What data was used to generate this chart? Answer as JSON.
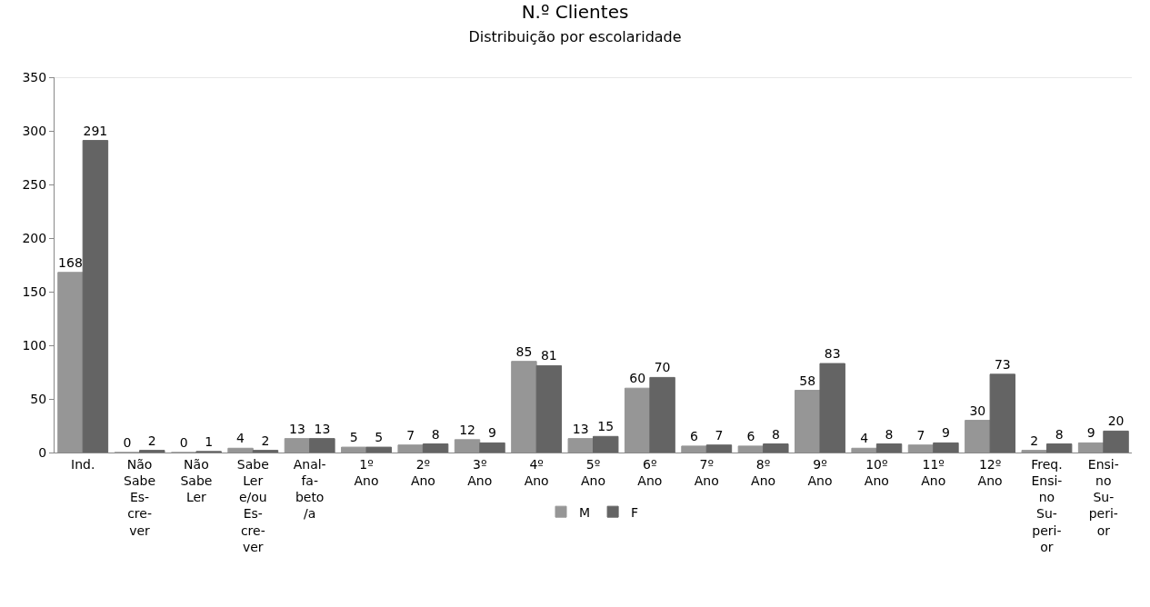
{
  "chart_data": {
    "type": "bar",
    "title": "N.º Clientes",
    "subtitle": "Distribuição por escolaridade",
    "categories": [
      "Ind.",
      "Não\nSabe\nEs-\ncre-\nver",
      "Não\nSabe\nLer",
      "Sabe\nLer\ne/ou\nEs-\ncre-\nver",
      "Anal-\nfa-\nbeto\n/a",
      "1º\nAno",
      "2º\nAno",
      "3º\nAno",
      "4º\nAno",
      "5º\nAno",
      "6º\nAno",
      "7º\nAno",
      "8º\nAno",
      "9º\nAno",
      "10º\nAno",
      "11º\nAno",
      "12º\nAno",
      "Freq.\nEnsi-\nno\nSu-\nperi-\nor",
      "Ensi-\nno\nSu-\nperi-\nor"
    ],
    "series": [
      {
        "name": "M",
        "color": "#969696",
        "values": [
          168,
          0,
          0,
          4,
          13,
          5,
          7,
          12,
          85,
          13,
          60,
          6,
          6,
          58,
          4,
          7,
          30,
          2,
          9
        ]
      },
      {
        "name": "F",
        "color": "#646464",
        "values": [
          291,
          2,
          1,
          2,
          13,
          5,
          8,
          9,
          81,
          15,
          70,
          7,
          8,
          83,
          8,
          9,
          73,
          8,
          20
        ]
      }
    ],
    "ylim": [
      0,
      350
    ],
    "yticks": [
      0,
      50,
      100,
      150,
      200,
      250,
      300,
      350
    ],
    "grid": false,
    "legend": "bottom",
    "data_labels": true
  }
}
